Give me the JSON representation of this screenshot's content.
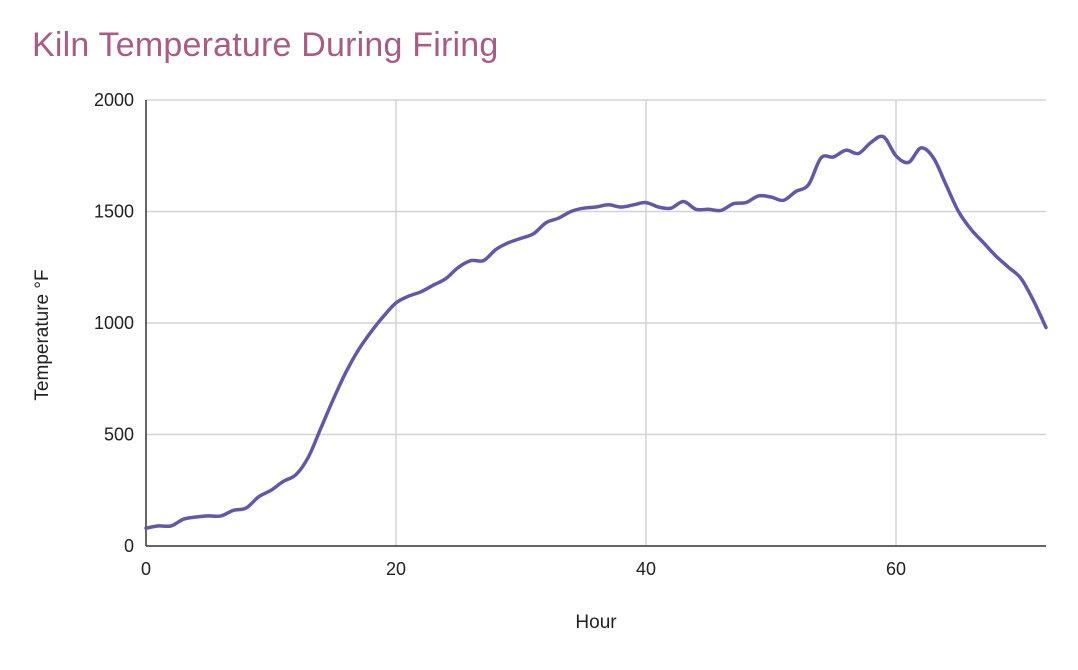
{
  "chart_data": {
    "type": "line",
    "title": "Kiln Temperature During Firing",
    "xlabel": "Hour",
    "ylabel": "Temperature °F",
    "xlim": [
      0,
      72
    ],
    "ylim": [
      0,
      2000
    ],
    "x_ticks": [
      0,
      20,
      40,
      60
    ],
    "y_ticks": [
      0,
      500,
      1000,
      1500,
      2000
    ],
    "grid": true,
    "legend": "none",
    "series": [
      {
        "color": "#6557a6",
        "x": [
          0,
          1,
          2,
          3,
          4,
          5,
          6,
          7,
          8,
          9,
          10,
          11,
          12,
          13,
          14,
          15,
          16,
          17,
          18,
          19,
          20,
          21,
          22,
          23,
          24,
          25,
          26,
          27,
          28,
          29,
          30,
          31,
          32,
          33,
          34,
          35,
          36,
          37,
          38,
          39,
          40,
          41,
          42,
          43,
          44,
          45,
          46,
          47,
          48,
          49,
          50,
          51,
          52,
          53,
          54,
          55,
          56,
          57,
          58,
          59,
          60,
          61,
          62,
          63,
          64,
          65,
          66,
          67,
          68,
          69,
          70,
          71,
          72
        ],
        "y": [
          80,
          90,
          90,
          120,
          130,
          135,
          135,
          160,
          170,
          220,
          250,
          290,
          320,
          400,
          530,
          660,
          780,
          880,
          960,
          1030,
          1090,
          1120,
          1140,
          1170,
          1200,
          1250,
          1280,
          1280,
          1330,
          1360,
          1380,
          1400,
          1450,
          1470,
          1500,
          1515,
          1520,
          1530,
          1520,
          1530,
          1540,
          1520,
          1515,
          1545,
          1510,
          1510,
          1505,
          1535,
          1540,
          1570,
          1565,
          1550,
          1590,
          1620,
          1740,
          1745,
          1775,
          1760,
          1810,
          1835,
          1750,
          1720,
          1785,
          1740,
          1620,
          1500,
          1420,
          1360,
          1300,
          1250,
          1200,
          1100,
          980
        ]
      }
    ]
  },
  "colors": {
    "title": "#a65c85",
    "gridline": "#d3d3d3",
    "axis": "#333333",
    "text": "#222222"
  }
}
